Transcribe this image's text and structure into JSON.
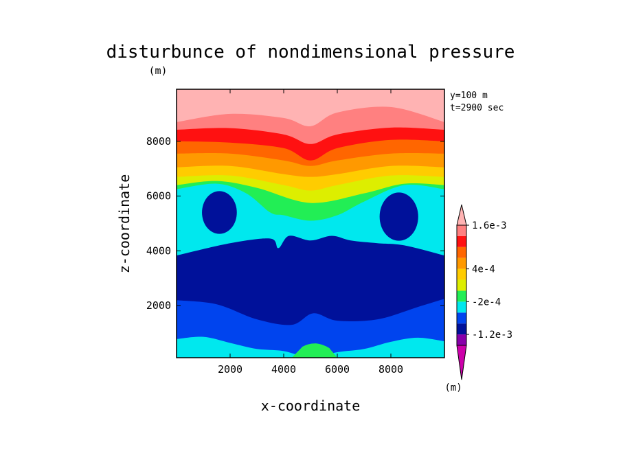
{
  "chart_data": {
    "type": "heatmap",
    "title": "disturbunce of nondimensional pressure",
    "title_unit": "(m)",
    "xlabel": "x-coordinate",
    "ylabel": "z-coordinate",
    "xlim": [
      0,
      10000
    ],
    "ylim": [
      100,
      9900
    ],
    "x_ticks": [
      2000,
      4000,
      6000,
      8000
    ],
    "y_ticks": [
      2000,
      4000,
      6000,
      8000
    ],
    "annotations": [
      "y=100 m",
      "t=2900 sec"
    ],
    "colorbar": {
      "unit_label": "(m)",
      "levels": [
        -0.0016,
        -0.0012,
        -0.0008,
        -0.0004,
        -0.0002,
        0,
        0.0002,
        0.0004,
        0.0006,
        0.0008,
        0.0012,
        0.0016,
        0.002
      ],
      "tick_labels": [
        {
          "value": 0.0016,
          "label": "1.6e-3"
        },
        {
          "value": 0.0004,
          "label": "4e-4"
        },
        {
          "value": -0.0002,
          "label": "-2e-4"
        },
        {
          "value": -0.0012,
          "label": "-1.2e-3"
        }
      ],
      "colors": [
        "#cc00aa",
        "#8800aa",
        "#00119a",
        "#0044ee",
        "#00e8ee",
        "#22ee55",
        "#ddee00",
        "#ffcc00",
        "#ff9900",
        "#ff6600",
        "#ff1111",
        "#ff8080",
        "#ffb3b3"
      ]
    },
    "field_bands_bottom_to_top": [
      {
        "color": "#22ee55",
        "top_boundary_z": [
          [
            4300,
            100
          ],
          [
            4700,
            500
          ],
          [
            5200,
            620
          ],
          [
            5700,
            450
          ],
          [
            6000,
            100
          ]
        ]
      },
      {
        "color": "#00e8ee",
        "top_boundary_z": [
          [
            0,
            780
          ],
          [
            1000,
            860
          ],
          [
            2000,
            640
          ],
          [
            3000,
            420
          ],
          [
            4000,
            340
          ],
          [
            5000,
            100
          ],
          [
            6000,
            300
          ],
          [
            7000,
            420
          ],
          [
            8000,
            680
          ],
          [
            9000,
            830
          ],
          [
            10000,
            700
          ]
        ]
      },
      {
        "color": "#0044ee",
        "top_boundary_z": [
          [
            0,
            2200
          ],
          [
            1500,
            2050
          ],
          [
            3000,
            1500
          ],
          [
            4300,
            1300
          ],
          [
            5100,
            1720
          ],
          [
            6000,
            1450
          ],
          [
            7500,
            1500
          ],
          [
            9000,
            1950
          ],
          [
            10000,
            2250
          ]
        ]
      },
      {
        "color": "#00119a",
        "top_boundary_z": [
          [
            0,
            3830
          ],
          [
            2000,
            4280
          ],
          [
            3500,
            4450
          ],
          [
            3800,
            4100
          ],
          [
            4200,
            4550
          ],
          [
            5000,
            4380
          ],
          [
            5800,
            4550
          ],
          [
            6500,
            4380
          ],
          [
            7500,
            4280
          ],
          [
            8500,
            4200
          ],
          [
            10000,
            3830
          ]
        ]
      },
      {
        "color": "#00e8ee",
        "top_boundary_z": [
          [
            0,
            6250
          ],
          [
            1500,
            6450
          ],
          [
            2600,
            6100
          ],
          [
            3500,
            5400
          ],
          [
            4000,
            5300
          ],
          [
            5000,
            5100
          ],
          [
            6000,
            5300
          ],
          [
            7000,
            5800
          ],
          [
            8500,
            6400
          ],
          [
            10000,
            6250
          ]
        ]
      },
      {
        "color": "#22ee55",
        "top_boundary_z": [
          [
            0,
            6400
          ],
          [
            1500,
            6550
          ],
          [
            3000,
            6300
          ],
          [
            5000,
            5750
          ],
          [
            7000,
            6100
          ],
          [
            8500,
            6450
          ],
          [
            10000,
            6400
          ]
        ]
      },
      {
        "color": "#ddee00",
        "top_boundary_z": [
          [
            0,
            6700
          ],
          [
            2000,
            6750
          ],
          [
            4000,
            6400
          ],
          [
            5000,
            6200
          ],
          [
            6000,
            6400
          ],
          [
            8000,
            6750
          ],
          [
            10000,
            6700
          ]
        ]
      },
      {
        "color": "#ffcc00",
        "top_boundary_z": [
          [
            0,
            7050
          ],
          [
            2000,
            7100
          ],
          [
            4000,
            6800
          ],
          [
            5000,
            6700
          ],
          [
            6000,
            6800
          ],
          [
            8000,
            7100
          ],
          [
            10000,
            7050
          ]
        ]
      },
      {
        "color": "#ff9900",
        "top_boundary_z": [
          [
            0,
            7550
          ],
          [
            2000,
            7550
          ],
          [
            4000,
            7300
          ],
          [
            5000,
            7100
          ],
          [
            6000,
            7300
          ],
          [
            8000,
            7550
          ],
          [
            10000,
            7550
          ]
        ]
      },
      {
        "color": "#ff6600",
        "top_boundary_z": [
          [
            0,
            8000
          ],
          [
            2000,
            7950
          ],
          [
            4000,
            7750
          ],
          [
            5000,
            7300
          ],
          [
            6000,
            7750
          ],
          [
            8000,
            8050
          ],
          [
            10000,
            8000
          ]
        ]
      },
      {
        "color": "#ff1111",
        "top_boundary_z": [
          [
            0,
            8420
          ],
          [
            2000,
            8480
          ],
          [
            4000,
            8250
          ],
          [
            5000,
            7900
          ],
          [
            6000,
            8250
          ],
          [
            8000,
            8500
          ],
          [
            10000,
            8420
          ]
        ]
      },
      {
        "color": "#ff8080",
        "top_boundary_z": [
          [
            0,
            8700
          ],
          [
            2000,
            9000
          ],
          [
            4000,
            8850
          ],
          [
            5000,
            8550
          ],
          [
            6000,
            9050
          ],
          [
            8000,
            9250
          ],
          [
            10000,
            8700
          ]
        ]
      },
      {
        "color": "#ffb3b3",
        "top_boundary_z": [
          [
            0,
            9900
          ],
          [
            10000,
            9900
          ]
        ]
      }
    ],
    "dark_blobs": [
      {
        "color": "#00119a",
        "cx": 1600,
        "cz": 5400,
        "rx": 650,
        "rz": 780
      },
      {
        "color": "#00119a",
        "cx": 8300,
        "cz": 5250,
        "rx": 720,
        "rz": 880
      }
    ]
  }
}
